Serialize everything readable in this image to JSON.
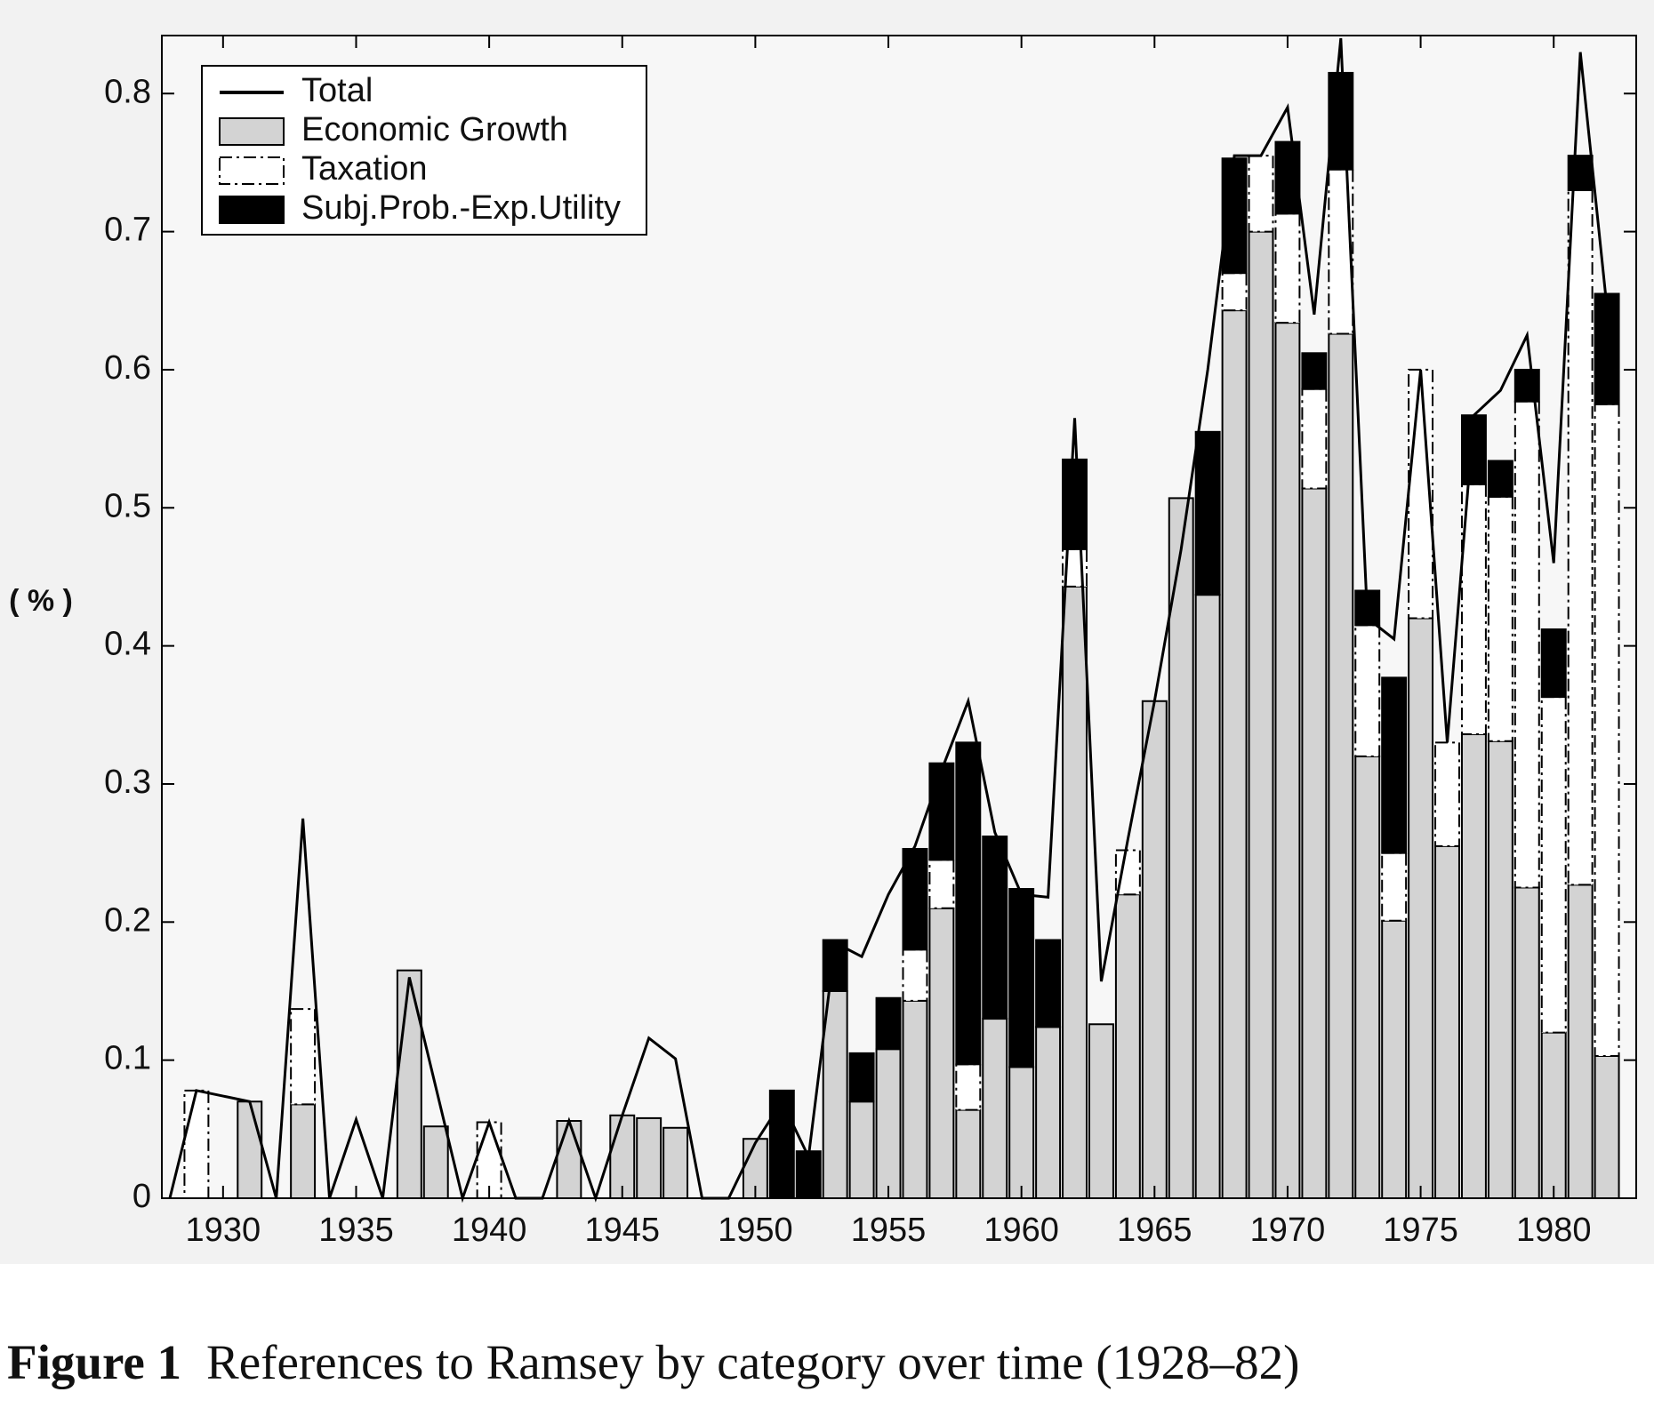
{
  "chart_data": {
    "type": "bar",
    "stacked": true,
    "y_label": "( % )",
    "figure_label": "Figure 1",
    "caption": "References to Ramsey by category over time (1928–82)",
    "x": [
      1928,
      1929,
      1930,
      1931,
      1932,
      1933,
      1934,
      1935,
      1936,
      1937,
      1938,
      1939,
      1940,
      1941,
      1942,
      1943,
      1944,
      1945,
      1946,
      1947,
      1948,
      1949,
      1950,
      1951,
      1952,
      1953,
      1954,
      1955,
      1956,
      1957,
      1958,
      1959,
      1960,
      1961,
      1962,
      1963,
      1964,
      1965,
      1966,
      1967,
      1968,
      1969,
      1970,
      1971,
      1972,
      1973,
      1974,
      1975,
      1976,
      1977,
      1978,
      1979,
      1980,
      1981,
      1982
    ],
    "series": [
      {
        "name": "Economic Growth",
        "color": "#d3d3d3",
        "values": [
          0,
          0,
          0,
          0.07,
          0,
          0.068,
          0,
          0,
          0,
          0.165,
          0.052,
          0,
          0,
          0,
          0,
          0.056,
          0,
          0.06,
          0.058,
          0.051,
          0,
          0,
          0.043,
          0,
          0,
          0.15,
          0.07,
          0.108,
          0.143,
          0.21,
          0.064,
          0.13,
          0.095,
          0.124,
          0.443,
          0.126,
          0.22,
          0.36,
          0.507,
          0.437,
          0.643,
          0.7,
          0.634,
          0.514,
          0.626,
          0.32,
          0.201,
          0.42,
          0.255,
          0.336,
          0.331,
          0.225,
          0.12,
          0.227,
          0.103
        ]
      },
      {
        "name": "Taxation",
        "color": "#ffffff",
        "values": [
          0,
          0.078,
          0,
          0,
          0,
          0.069,
          0,
          0,
          0,
          0,
          0,
          0,
          0.055,
          0,
          0,
          0,
          0,
          0,
          0,
          0,
          0,
          0,
          0,
          0,
          0,
          0,
          0,
          0,
          0.037,
          0.035,
          0.033,
          0,
          0,
          0,
          0.027,
          0,
          0.032,
          0,
          0,
          0,
          0.027,
          0.055,
          0.079,
          0.072,
          0.119,
          0.095,
          0.049,
          0.18,
          0.075,
          0.181,
          0.177,
          0.352,
          0.243,
          0.503,
          0.472
        ]
      },
      {
        "name": "Subj.Prob.-Exp.Utility",
        "color": "#000000",
        "values": [
          0,
          0,
          0,
          0,
          0,
          0,
          0,
          0,
          0,
          0,
          0,
          0,
          0,
          0,
          0,
          0,
          0,
          0,
          0,
          0,
          0,
          0,
          0,
          0.078,
          0.034,
          0.037,
          0.035,
          0.037,
          0.073,
          0.07,
          0.233,
          0.132,
          0.129,
          0.063,
          0.065,
          0,
          0,
          0,
          0,
          0.118,
          0.083,
          0,
          0.052,
          0.026,
          0.07,
          0.025,
          0.127,
          0,
          0,
          0.05,
          0.026,
          0.023,
          0.049,
          0.025,
          0.08
        ]
      }
    ],
    "total": {
      "name": "Total",
      "color": "#000000",
      "values": [
        0,
        0.078,
        0.074,
        0.07,
        0,
        0.275,
        0,
        0.057,
        0,
        0.16,
        0.08,
        0,
        0.055,
        0,
        0,
        0.056,
        0,
        0.06,
        0.116,
        0.101,
        0,
        0,
        0.04,
        0.07,
        0.03,
        0.185,
        0.175,
        0.22,
        0.255,
        0.31,
        0.36,
        0.265,
        0.22,
        0.218,
        0.565,
        0.157,
        0.26,
        0.36,
        0.47,
        0.6,
        0.755,
        0.755,
        0.79,
        0.64,
        0.84,
        0.42,
        0.405,
        0.6,
        0.33,
        0.567,
        0.585,
        0.625,
        0.46,
        0.83,
        0.645
      ]
    },
    "xlim": [
      1927.7,
      1983.1
    ],
    "ylim": [
      0,
      0.842
    ],
    "xticks": [
      1930,
      1935,
      1940,
      1945,
      1950,
      1955,
      1960,
      1965,
      1970,
      1975,
      1980
    ],
    "yticks": [
      0,
      0.1,
      0.2,
      0.3,
      0.4,
      0.5,
      0.6,
      0.7,
      0.8
    ],
    "legend": "upper left"
  }
}
